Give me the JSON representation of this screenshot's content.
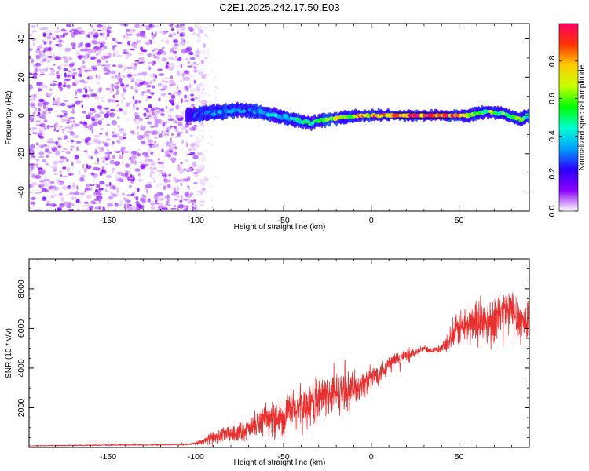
{
  "title": "C2E1.2025.242.17.50.E03",
  "chart_data": [
    {
      "type": "heatmap",
      "xlabel": "Height of straight line (km)",
      "ylabel": "Frequency (Hz)",
      "xlim": [
        -195,
        90
      ],
      "ylim": [
        -50,
        48
      ],
      "x_ticks": [
        -150,
        -100,
        -50,
        0,
        50
      ],
      "x_tick_labels": [
        "-150",
        "-100",
        "-50",
        "0",
        "50"
      ],
      "y_ticks": [
        -40,
        -20,
        0,
        20,
        40
      ],
      "y_tick_labels": [
        "-40",
        "-20",
        "0",
        "20",
        "40"
      ],
      "colorbar": {
        "label": "Normalized spectral amplitude",
        "range": [
          0,
          1
        ],
        "ticks": [
          0.0,
          0.2,
          0.4,
          0.6,
          0.8
        ],
        "tick_labels": [
          "0.0",
          "0.2",
          "0.4",
          "0.6",
          "0.8"
        ],
        "colormap": [
          "#ffffff",
          "#8c00ff",
          "#2a00ff",
          "#00a0ff",
          "#00ffd0",
          "#00ff00",
          "#c8ff00",
          "#ffcc00",
          "#ff3300",
          "#ff0066"
        ]
      },
      "noise_region": {
        "x_range": [
          -195,
          -100
        ],
        "freq_range": [
          -50,
          48
        ],
        "typical_amplitude": 0.05
      },
      "signal_ridge": {
        "x": [
          -105,
          -95,
          -85,
          -75,
          -65,
          -55,
          -45,
          -35,
          -25,
          -15,
          -5,
          5,
          15,
          25,
          35,
          45,
          55,
          65,
          75,
          85,
          90
        ],
        "frequency": [
          0,
          1,
          2,
          3,
          2,
          0,
          -2,
          -4,
          -2,
          -1,
          0,
          0,
          0,
          0,
          0,
          0,
          0,
          2,
          1,
          -2,
          0
        ],
        "amplitude": [
          0.25,
          0.3,
          0.35,
          0.3,
          0.35,
          0.4,
          0.45,
          0.5,
          0.6,
          0.7,
          0.8,
          0.85,
          0.95,
          0.95,
          0.95,
          0.9,
          0.75,
          0.6,
          0.6,
          0.55,
          0.5
        ]
      }
    },
    {
      "type": "line",
      "xlabel": "Height of straight line (km)",
      "ylabel": "SNR (10 * v/v)",
      "xlim": [
        -195,
        90
      ],
      "ylim": [
        0,
        9500
      ],
      "x_ticks": [
        -150,
        -100,
        -50,
        0,
        50
      ],
      "x_tick_labels": [
        "-150",
        "-100",
        "-50",
        "0",
        "50"
      ],
      "y_ticks": [
        2000,
        4000,
        6000,
        8000
      ],
      "y_tick_labels": [
        "2000",
        "4000",
        "6000",
        "8000"
      ],
      "series": [
        {
          "name": "SNR",
          "color": "#e83030",
          "x": [
            -195,
            -175,
            -150,
            -125,
            -105,
            -100,
            -90,
            -80,
            -70,
            -60,
            -50,
            -45,
            -40,
            -35,
            -30,
            -25,
            -20,
            -15,
            -10,
            -5,
            0,
            5,
            10,
            15,
            20,
            25,
            30,
            35,
            40,
            45,
            50,
            55,
            60,
            65,
            70,
            75,
            80,
            85,
            90
          ],
          "y": [
            80,
            100,
            120,
            130,
            150,
            200,
            500,
            700,
            900,
            1400,
            1600,
            1800,
            2000,
            2200,
            2400,
            2700,
            2700,
            2800,
            3000,
            3200,
            3500,
            3800,
            4200,
            4500,
            4600,
            4800,
            5000,
            4900,
            5000,
            5400,
            6000,
            6200,
            6400,
            6300,
            6500,
            6800,
            6800,
            6400,
            6200
          ],
          "noise_amplitude": [
            20,
            25,
            30,
            30,
            40,
            80,
            300,
            400,
            500,
            700,
            900,
            1000,
            1100,
            1100,
            1100,
            1000,
            1000,
            900,
            800,
            700,
            600,
            500,
            500,
            400,
            300,
            200,
            150,
            150,
            200,
            500,
            900,
            1000,
            1100,
            1100,
            1100,
            1200,
            1200,
            1100,
            1000
          ]
        }
      ]
    }
  ]
}
